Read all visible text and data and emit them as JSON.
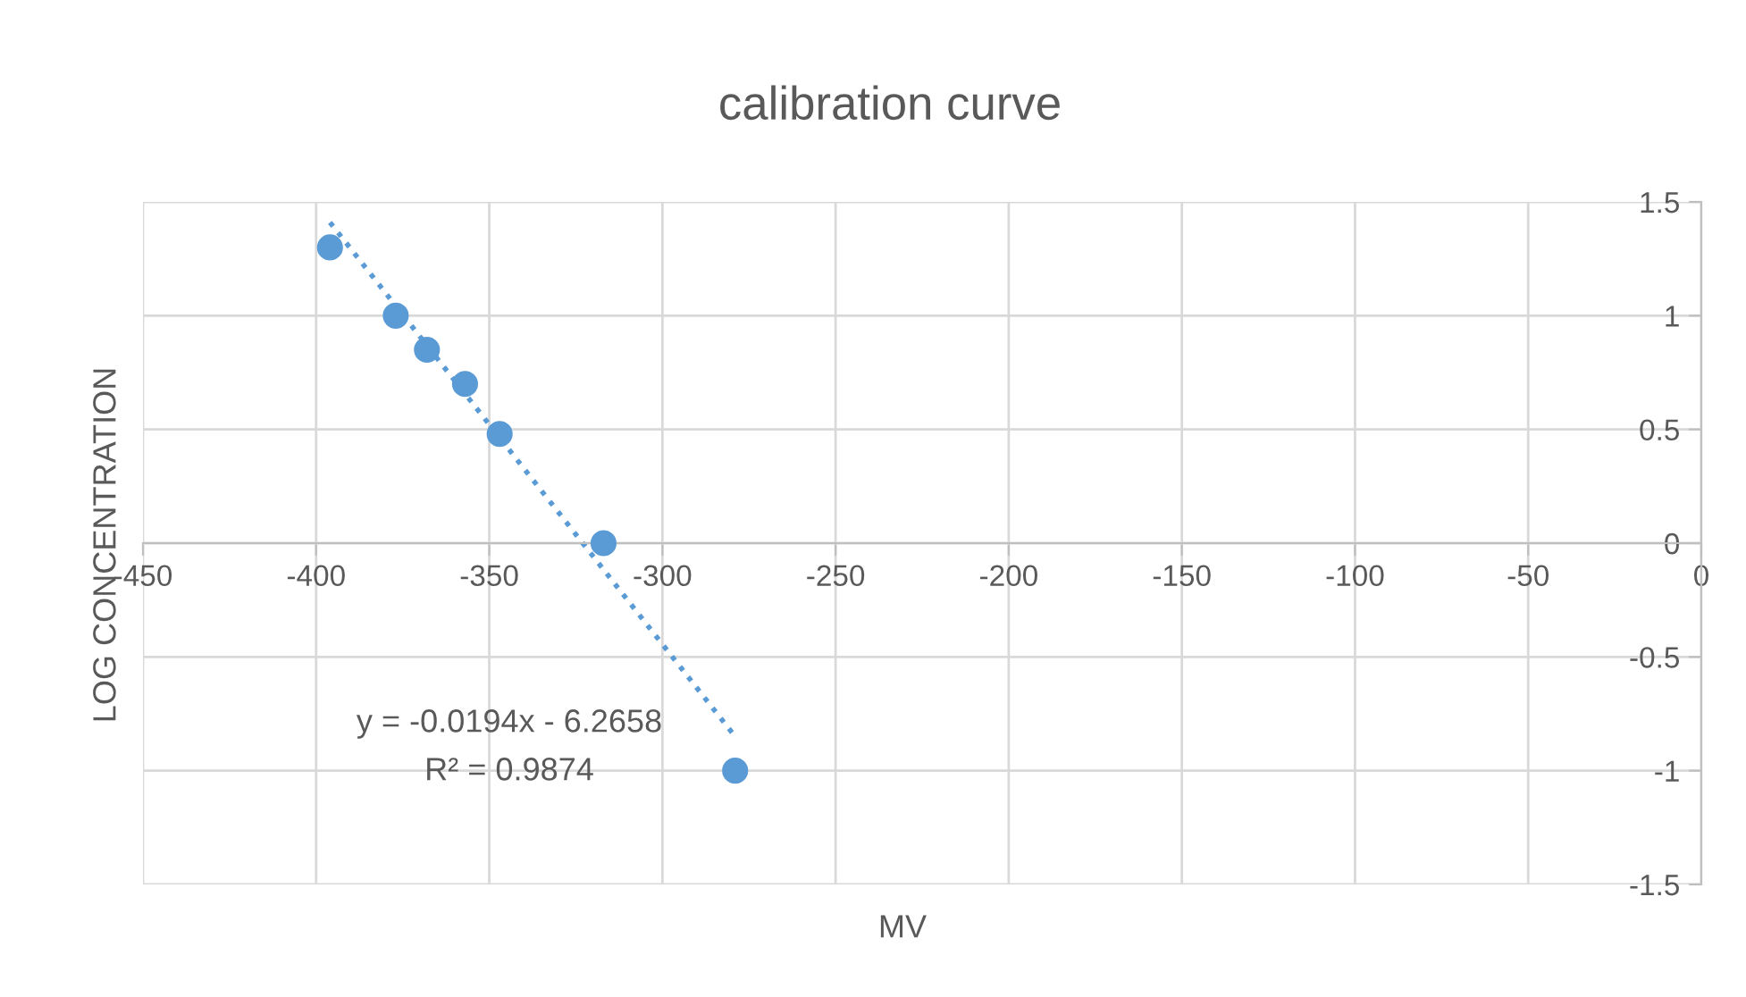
{
  "chart_data": {
    "type": "scatter",
    "title": "calibration curve",
    "xlabel": "MV",
    "ylabel": "LOG CONCENTRATION",
    "annotations": [
      "y = -0.0194x - 6.2658",
      "R² = 0.9874"
    ],
    "series": [
      {
        "color": "#5b9bd5",
        "marker": "circle",
        "x": [
          -396,
          -377,
          -368,
          -357,
          -347,
          -317,
          -279
        ],
        "values": [
          1.3,
          1.0,
          0.85,
          0.7,
          0.48,
          0.0,
          -1.0
        ]
      },
      {
        "type": "line",
        "color": "#5b9bd5",
        "line_style": "dotted",
        "marker": "none",
        "x": [
          -396,
          -279
        ],
        "values": [
          1.41,
          -0.85
        ]
      }
    ],
    "xlim": [
      -450,
      0
    ],
    "xticks": [
      -450,
      -400,
      -350,
      -300,
      -250,
      -200,
      -150,
      -100,
      -50,
      0
    ],
    "ylim": [
      -1.5,
      1.5
    ],
    "yticks": [
      -1.5,
      -1,
      -0.5,
      0,
      0.5,
      1,
      1.5
    ],
    "grid": true,
    "legend": false
  }
}
